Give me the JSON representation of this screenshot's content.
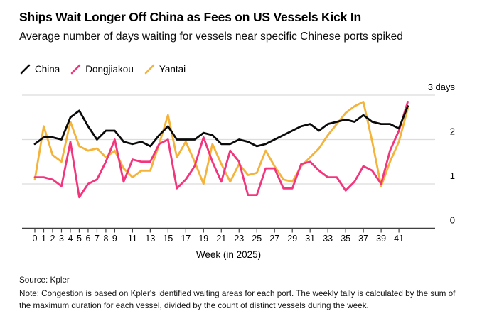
{
  "header": {
    "title": "Ships Wait Longer Off China as Fees on US Vessels Kick In",
    "subtitle": "Average number of days waiting for vessels near specific Chinese ports spiked"
  },
  "colors": {
    "china_line": "#0a0a0a",
    "dongjiakou_line": "#f2357d",
    "yantai_line": "#f4b43c",
    "gridline": "#dcdcdc",
    "axis": "#3f3f3f",
    "background": "#ffffff"
  },
  "chart_data": {
    "type": "line",
    "title": "Ships Wait Longer Off China as Fees on US Vessels Kick In",
    "subtitle": "Average number of days waiting for vessels near specific Chinese ports spiked",
    "xlabel": "Week (in 2025)",
    "ylabel": "days",
    "ylim": [
      0,
      3
    ],
    "grid": "horizontal",
    "legend_position": "top-left",
    "y_ticks": [
      0,
      1,
      2,
      3
    ],
    "y_tick_labels": [
      "0",
      "1",
      "2",
      "3 days"
    ],
    "x_ticks": [
      0,
      1,
      2,
      3,
      4,
      5,
      6,
      7,
      8,
      9,
      11,
      13,
      15,
      17,
      19,
      21,
      23,
      25,
      27,
      29,
      31,
      33,
      35,
      37,
      39,
      41
    ],
    "x": [
      0,
      1,
      2,
      3,
      4,
      5,
      6,
      7,
      8,
      9,
      10,
      11,
      12,
      13,
      14,
      15,
      16,
      17,
      18,
      19,
      20,
      21,
      22,
      23,
      24,
      25,
      26,
      27,
      28,
      29,
      30,
      31,
      32,
      33,
      34,
      35,
      36,
      37,
      38,
      39,
      40,
      41,
      42
    ],
    "series": [
      {
        "name": "China",
        "color": "#0a0a0a",
        "values": [
          1.9,
          2.05,
          2.05,
          2.0,
          2.5,
          2.65,
          2.3,
          2.0,
          2.2,
          2.2,
          1.95,
          1.9,
          1.95,
          1.85,
          2.1,
          2.3,
          2.0,
          2.0,
          2.0,
          2.15,
          2.1,
          1.9,
          1.9,
          2.0,
          1.95,
          1.85,
          1.9,
          2.0,
          2.1,
          2.2,
          2.3,
          2.35,
          2.2,
          2.35,
          2.4,
          2.45,
          2.4,
          2.55,
          2.4,
          2.35,
          2.35,
          2.25,
          2.75
        ]
      },
      {
        "name": "Dongjiakou",
        "color": "#f2357d",
        "values": [
          1.15,
          1.15,
          1.1,
          0.95,
          1.95,
          0.7,
          1.0,
          1.1,
          1.5,
          2.0,
          1.05,
          1.55,
          1.5,
          1.5,
          1.9,
          2.0,
          0.9,
          1.1,
          1.4,
          2.05,
          1.5,
          1.05,
          1.75,
          1.5,
          0.75,
          0.75,
          1.35,
          1.35,
          0.9,
          0.9,
          1.45,
          1.5,
          1.3,
          1.15,
          1.15,
          0.85,
          1.05,
          1.4,
          1.3,
          1.0,
          1.75,
          2.2,
          2.85
        ]
      },
      {
        "name": "Yantai",
        "color": "#f4b43c",
        "values": [
          1.1,
          2.3,
          1.65,
          1.5,
          2.4,
          1.85,
          1.75,
          1.8,
          1.6,
          1.75,
          1.35,
          1.15,
          1.3,
          1.3,
          1.9,
          2.55,
          1.6,
          1.95,
          1.5,
          1.0,
          1.9,
          1.45,
          1.05,
          1.45,
          1.2,
          1.25,
          1.75,
          1.4,
          1.1,
          1.05,
          1.4,
          1.6,
          1.8,
          2.1,
          2.35,
          2.6,
          2.75,
          2.85,
          1.95,
          0.95,
          1.5,
          1.95,
          2.7
        ]
      }
    ]
  },
  "footer": {
    "source": "Source: Kpler",
    "note": "Note: Congestion is based on Kpler's identified waiting areas for each port. The weekly tally is calculated by the sum of the maximum duration for each vessel, divided by the count of distinct vessels during the week."
  }
}
